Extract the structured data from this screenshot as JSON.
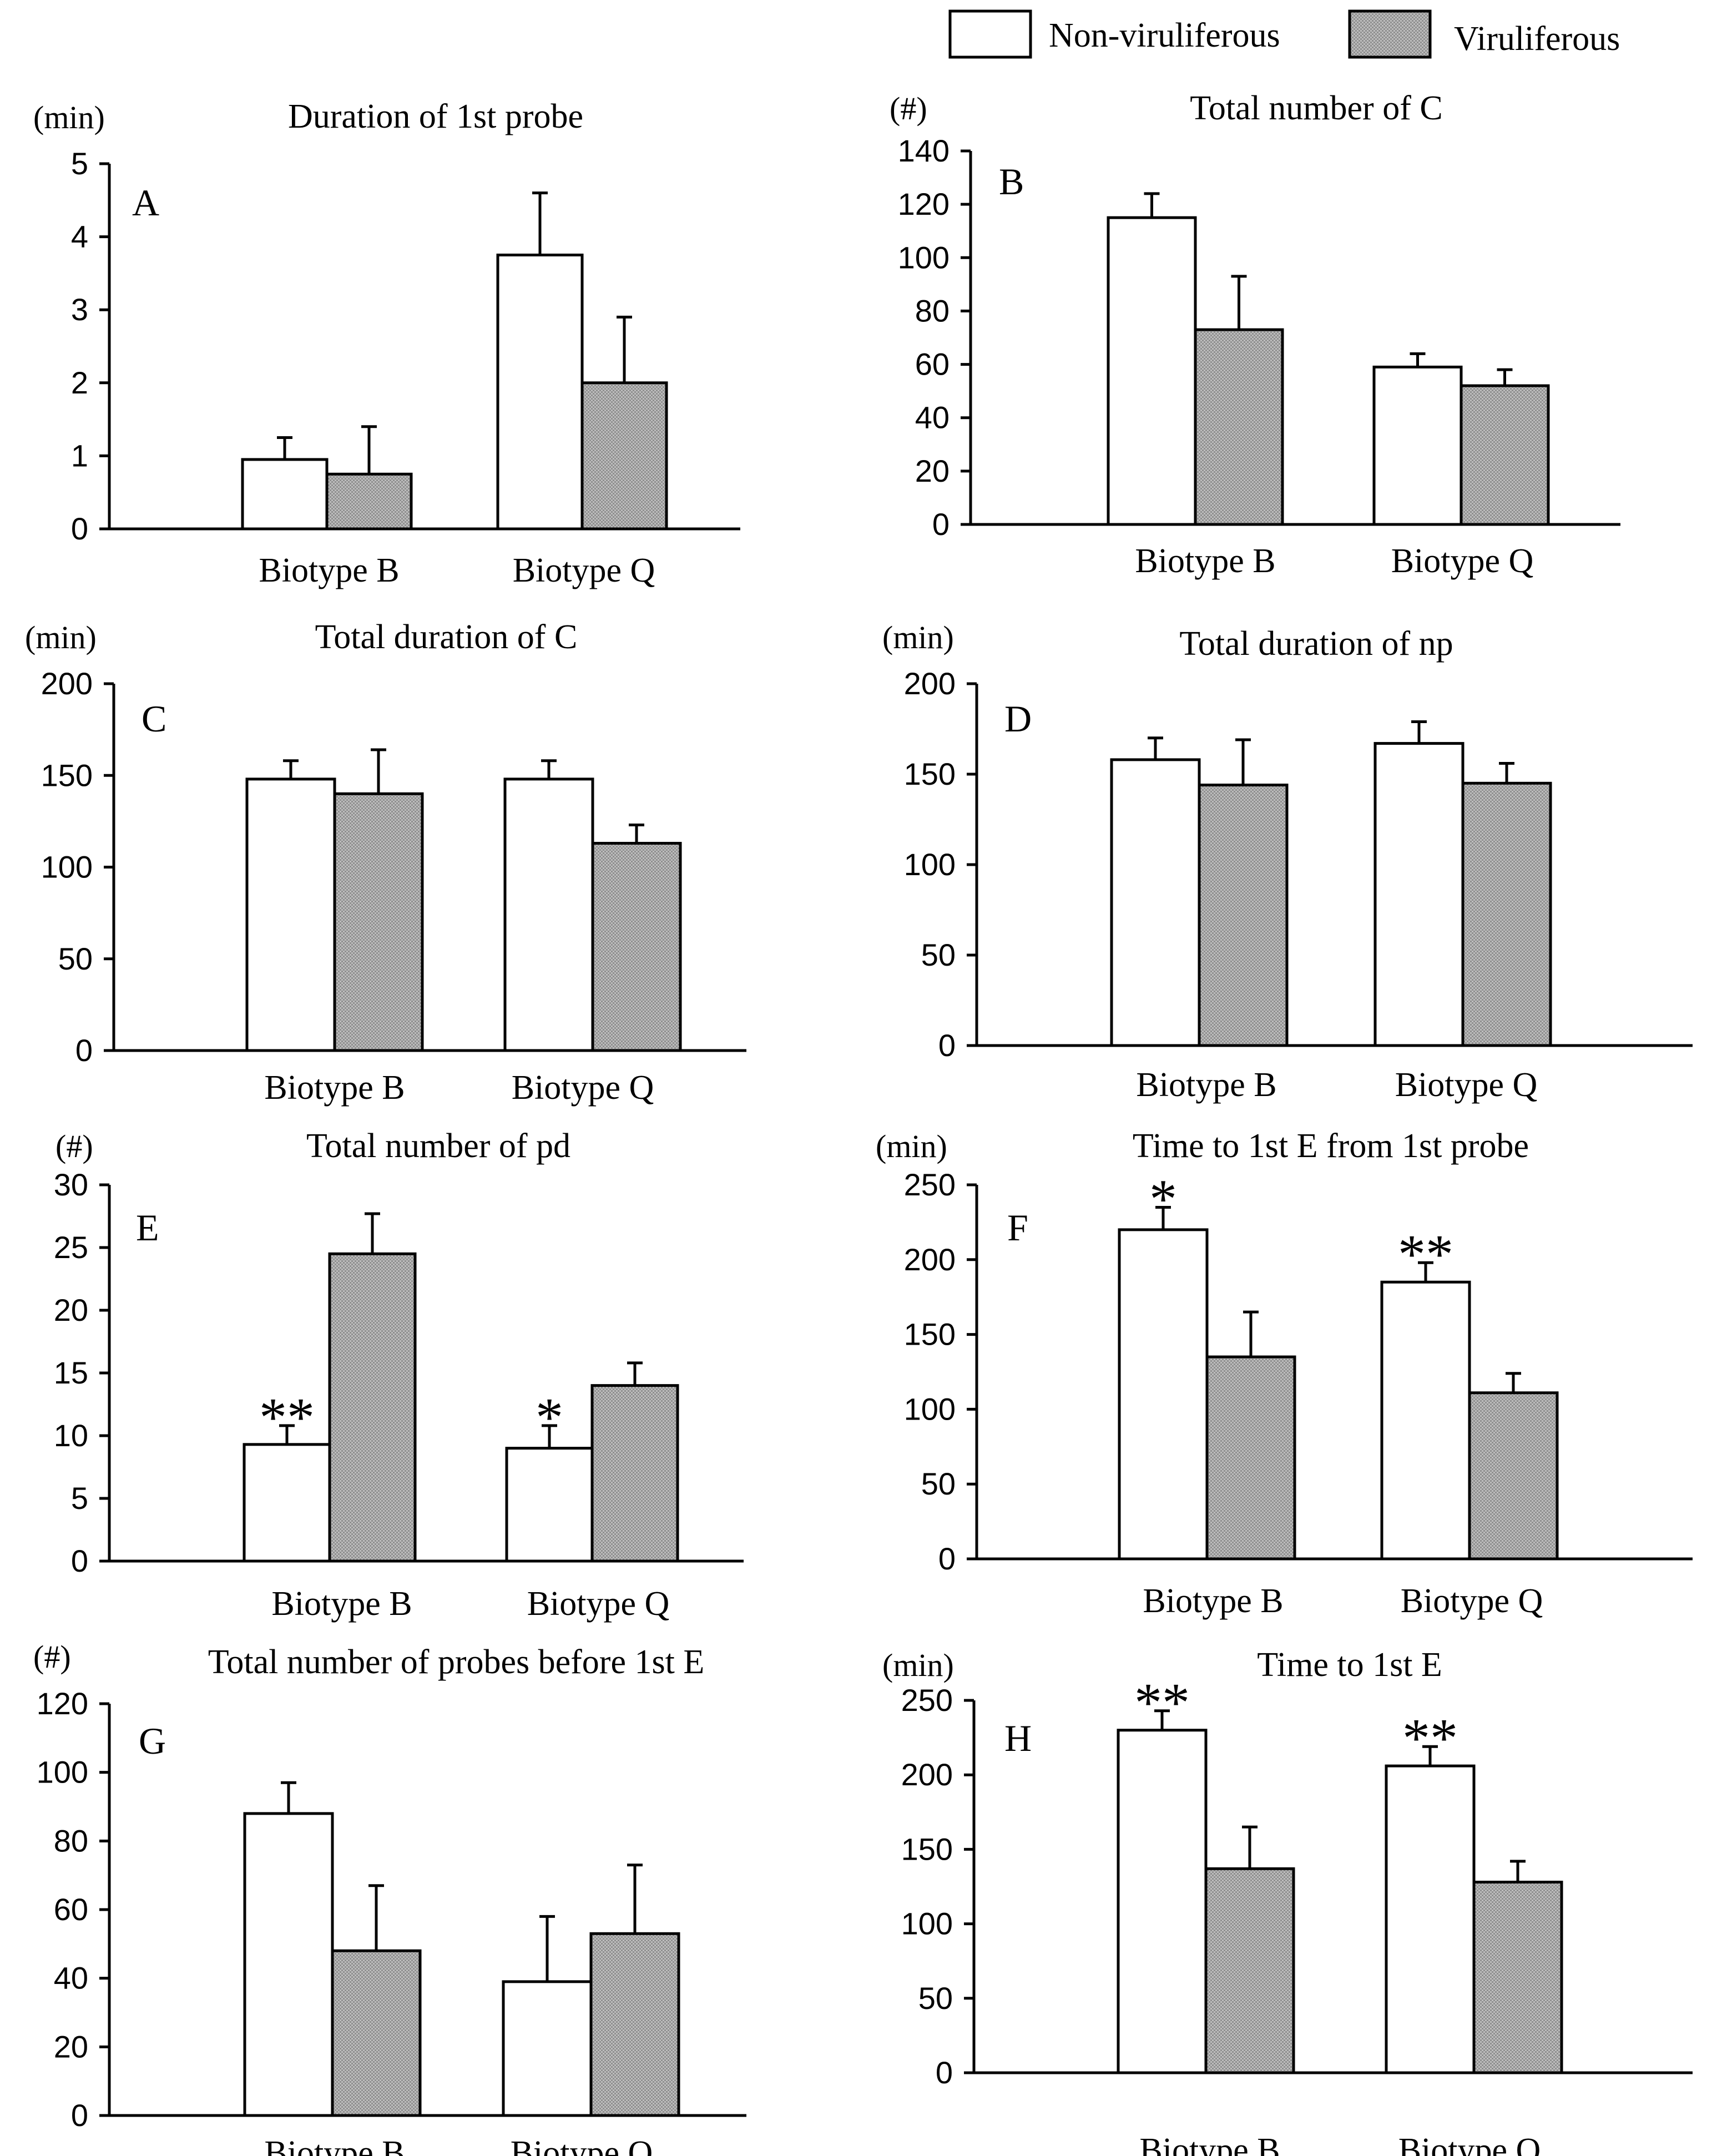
{
  "legend": {
    "items": [
      {
        "label": "Non-viruliferous",
        "color": "#ffffff"
      },
      {
        "label": "Viruliferous",
        "color": "#a9a9a9"
      }
    ]
  },
  "chart_data": [
    {
      "panel": "A",
      "type": "bar",
      "title": "Duration of 1st probe",
      "unit": "(min)",
      "categories": [
        "Biotype B",
        "Biotype Q"
      ],
      "ylim": [
        0,
        5
      ],
      "yticks": [
        0,
        1,
        2,
        3,
        4,
        5
      ],
      "series": [
        {
          "name": "Non-viruliferous",
          "values": [
            0.95,
            3.75
          ],
          "errors": [
            0.3,
            0.85
          ],
          "marks": [
            "",
            ""
          ]
        },
        {
          "name": "Viruliferous",
          "values": [
            0.75,
            2.0
          ],
          "errors": [
            0.65,
            0.9
          ],
          "marks": [
            "",
            ""
          ]
        }
      ]
    },
    {
      "panel": "B",
      "type": "bar",
      "title": "Total number of C",
      "unit": "(#)",
      "categories": [
        "Biotype B",
        "Biotype Q"
      ],
      "ylim": [
        0,
        140
      ],
      "yticks": [
        0,
        20,
        40,
        60,
        80,
        100,
        120,
        140
      ],
      "series": [
        {
          "name": "Non-viruliferous",
          "values": [
            115,
            59
          ],
          "errors": [
            9,
            5
          ],
          "marks": [
            "",
            ""
          ]
        },
        {
          "name": "Viruliferous",
          "values": [
            73,
            52
          ],
          "errors": [
            20,
            6
          ],
          "marks": [
            "",
            ""
          ]
        }
      ]
    },
    {
      "panel": "C",
      "type": "bar",
      "title": "Total duration of C",
      "unit": "(min)",
      "categories": [
        "Biotype B",
        "Biotype Q"
      ],
      "ylim": [
        0,
        200
      ],
      "yticks": [
        0,
        50,
        100,
        150,
        200
      ],
      "series": [
        {
          "name": "Non-viruliferous",
          "values": [
            148,
            148
          ],
          "errors": [
            10,
            10
          ],
          "marks": [
            "",
            ""
          ]
        },
        {
          "name": "Viruliferous",
          "values": [
            140,
            113
          ],
          "errors": [
            24,
            10
          ],
          "marks": [
            "",
            ""
          ]
        }
      ]
    },
    {
      "panel": "D",
      "type": "bar",
      "title": "Total duration of np",
      "unit": "(min)",
      "categories": [
        "Biotype B",
        "Biotype Q"
      ],
      "ylim": [
        0,
        200
      ],
      "yticks": [
        0,
        50,
        100,
        150,
        200
      ],
      "series": [
        {
          "name": "Non-viruliferous",
          "values": [
            158,
            167
          ],
          "errors": [
            12,
            12
          ],
          "marks": [
            "",
            ""
          ]
        },
        {
          "name": "Viruliferous",
          "values": [
            144,
            145
          ],
          "errors": [
            25,
            11
          ],
          "marks": [
            "",
            ""
          ]
        }
      ]
    },
    {
      "panel": "E",
      "type": "bar",
      "title": "Total number of pd",
      "unit": "(#)",
      "categories": [
        "Biotype B",
        "Biotype Q"
      ],
      "ylim": [
        0,
        30
      ],
      "yticks": [
        0,
        5,
        10,
        15,
        20,
        25,
        30
      ],
      "series": [
        {
          "name": "Non-viruliferous",
          "values": [
            9.3,
            9.0
          ],
          "errors": [
            1.5,
            1.8
          ],
          "marks": [
            "**",
            "*"
          ]
        },
        {
          "name": "Viruliferous",
          "values": [
            24.5,
            14.0
          ],
          "errors": [
            3.2,
            1.8
          ],
          "marks": [
            "",
            ""
          ]
        }
      ]
    },
    {
      "panel": "F",
      "type": "bar",
      "title": "Time to 1st E from 1st probe",
      "unit": "(min)",
      "categories": [
        "Biotype B",
        "Biotype Q"
      ],
      "ylim": [
        0,
        250
      ],
      "yticks": [
        0,
        50,
        100,
        150,
        200,
        250
      ],
      "series": [
        {
          "name": "Non-viruliferous",
          "values": [
            220,
            185
          ],
          "errors": [
            15,
            13
          ],
          "marks": [
            "*",
            "**"
          ]
        },
        {
          "name": "Viruliferous",
          "values": [
            135,
            111
          ],
          "errors": [
            30,
            13
          ],
          "marks": [
            "",
            ""
          ]
        }
      ]
    },
    {
      "panel": "G",
      "type": "bar",
      "title": "Total number of probes before 1st E",
      "unit": "(#)",
      "categories": [
        "Biotype B",
        "Biotype Q"
      ],
      "ylim": [
        0,
        120
      ],
      "yticks": [
        0,
        20,
        40,
        60,
        80,
        100,
        120
      ],
      "series": [
        {
          "name": "Non-viruliferous",
          "values": [
            88,
            39
          ],
          "errors": [
            9,
            19
          ],
          "marks": [
            "",
            ""
          ]
        },
        {
          "name": "Viruliferous",
          "values": [
            48,
            53
          ],
          "errors": [
            19,
            20
          ],
          "marks": [
            "",
            ""
          ]
        }
      ]
    },
    {
      "panel": "H",
      "type": "bar",
      "title": "Time to 1st E",
      "unit": "(min)",
      "categories": [
        "Biotype B",
        "Biotype Q"
      ],
      "ylim": [
        0,
        250
      ],
      "yticks": [
        0,
        50,
        100,
        150,
        200,
        250
      ],
      "series": [
        {
          "name": "Non-viruliferous",
          "values": [
            230,
            206
          ],
          "errors": [
            13,
            13
          ],
          "marks": [
            "**",
            "**"
          ]
        },
        {
          "name": "Viruliferous",
          "values": [
            137,
            128
          ],
          "errors": [
            28,
            14
          ],
          "marks": [
            "",
            ""
          ]
        }
      ]
    }
  ]
}
